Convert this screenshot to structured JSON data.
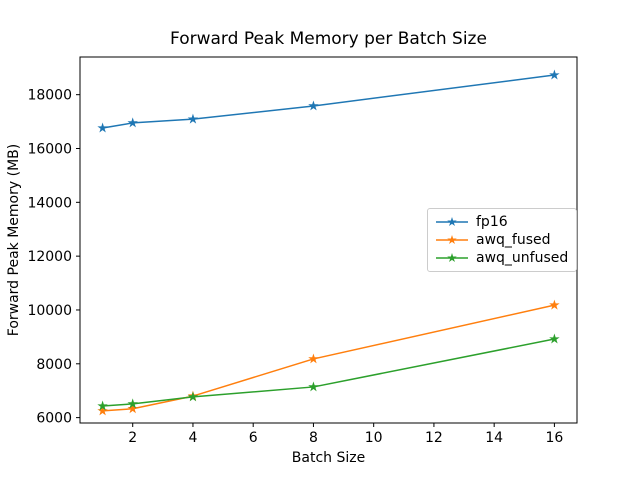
{
  "chart_data": {
    "type": "line",
    "title": "Forward Peak Memory per Batch Size",
    "xlabel": "Batch Size",
    "ylabel": "Forward Peak Memory (MB)",
    "x": [
      1,
      2,
      4,
      8,
      16
    ],
    "series": [
      {
        "name": "fp16",
        "color": "#1f77b4",
        "values": [
          16760,
          16950,
          17090,
          17580,
          18730
        ]
      },
      {
        "name": "awq_fused",
        "color": "#ff7f0e",
        "values": [
          6250,
          6330,
          6800,
          8180,
          10180
        ]
      },
      {
        "name": "awq_unfused",
        "color": "#2ca02c",
        "values": [
          6430,
          6510,
          6770,
          7140,
          8920
        ]
      }
    ],
    "xlim": [
      0.25,
      16.75
    ],
    "ylim": [
      5800,
      19400
    ],
    "xticks": [
      2,
      4,
      6,
      8,
      10,
      12,
      14,
      16
    ],
    "yticks": [
      6000,
      8000,
      10000,
      12000,
      14000,
      16000,
      18000
    ],
    "marker": "star",
    "line_width": 1.5,
    "grid": false,
    "legend_position": "center right",
    "axis_color": "#000000",
    "legend_border_color": "#cccccc",
    "background_color": "#ffffff"
  }
}
